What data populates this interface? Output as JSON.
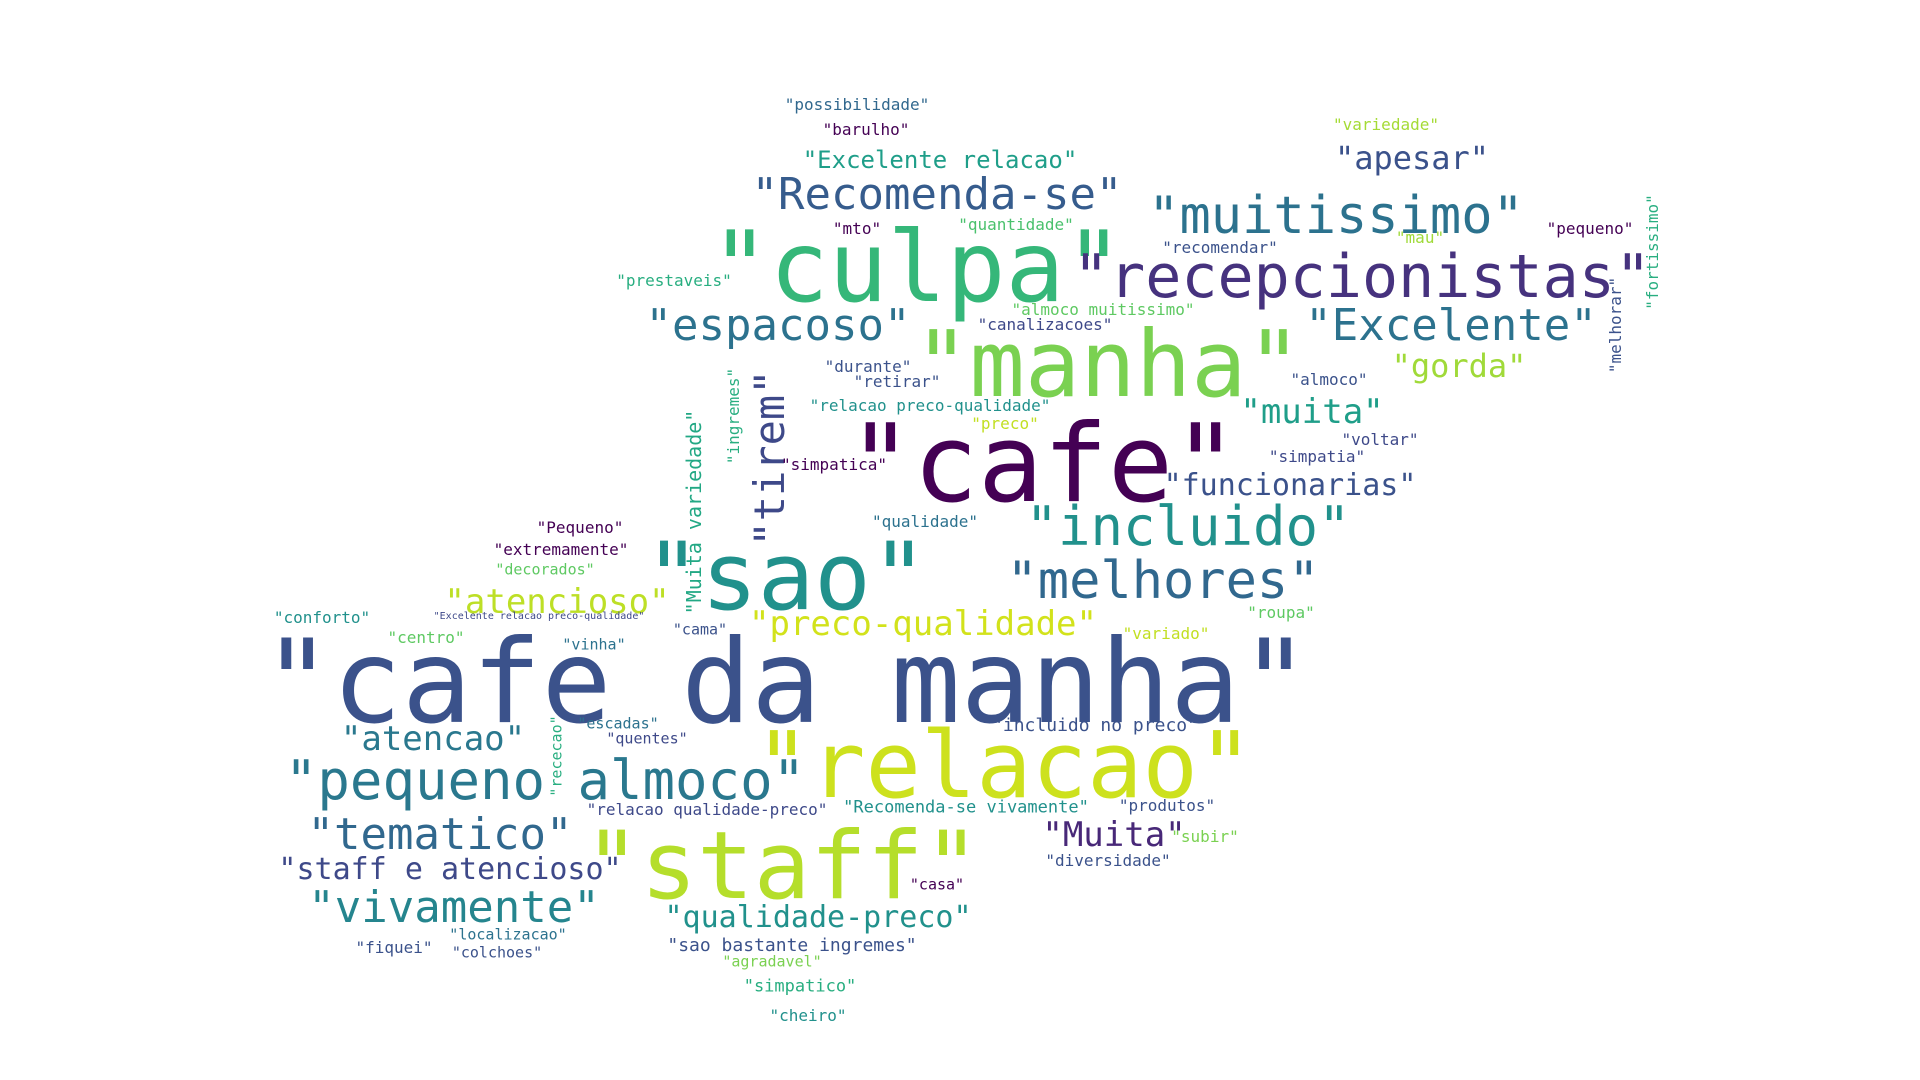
{
  "words": [
    {
      "text": "\"cafe da manha\"",
      "color": "#3b528b"
    },
    {
      "text": "\"culpa\"",
      "color": "#35b779"
    },
    {
      "text": "\"cafe\"",
      "color": "#440154"
    },
    {
      "text": "\"manha\"",
      "color": "#7ad151"
    },
    {
      "text": "\"sao\"",
      "color": "#21918c"
    },
    {
      "text": "\"relacao\"",
      "color": "#cde11d"
    },
    {
      "text": "\"staff\"",
      "color": "#b5de2b"
    },
    {
      "text": "\"recepcionistas\"",
      "color": "#46327e"
    },
    {
      "text": "\"muitissimo\"",
      "color": "#2c728e"
    },
    {
      "text": "\"Recomenda-se\"",
      "color": "#365c8d"
    },
    {
      "text": "\"espacoso\"",
      "color": "#2c728e"
    },
    {
      "text": "\"Excelente\"",
      "color": "#2c728e"
    },
    {
      "text": "\"incluido\"",
      "color": "#21918c"
    },
    {
      "text": "\"melhores\"",
      "color": "#31688e"
    },
    {
      "text": "\"pequeno almoco\"",
      "color": "#2a788e"
    },
    {
      "text": "\"tematico\"",
      "color": "#31688e"
    },
    {
      "text": "\"vivamente\"",
      "color": "#25858e"
    },
    {
      "text": "\"tirem\"",
      "color": "#3e4989"
    },
    {
      "text": "\"atencao\"",
      "color": "#2a788e"
    },
    {
      "text": "\"atencioso\"",
      "color": "#bddf26"
    },
    {
      "text": "\"preco-qualidade\"",
      "color": "#d2e21b"
    },
    {
      "text": "\"staff e atencioso\"",
      "color": "#3e4989"
    },
    {
      "text": "\"qualidade-preco\"",
      "color": "#21918c"
    },
    {
      "text": "\"funcionarias\"",
      "color": "#3b528b"
    },
    {
      "text": "\"muita\"",
      "color": "#1f9e89"
    },
    {
      "text": "\"gorda\"",
      "color": "#a0da39"
    },
    {
      "text": "\"apesar\"",
      "color": "#3b528b"
    },
    {
      "text": "\"Muita\"",
      "color": "#482878"
    },
    {
      "text": "\"Excelente relacao\"",
      "color": "#1f9e89"
    },
    {
      "text": "\"Muita variedade\"",
      "color": "#22a884"
    },
    {
      "text": "\"variedade\"",
      "color": "#a5db36"
    },
    {
      "text": "\"possibilidade\"",
      "color": "#31688e"
    },
    {
      "text": "\"barulho\"",
      "color": "#440154"
    },
    {
      "text": "\"mto\"",
      "color": "#440154"
    },
    {
      "text": "\"quantidade\"",
      "color": "#4ac16d"
    },
    {
      "text": "\"recomendar\"",
      "color": "#3b528b"
    },
    {
      "text": "\"mau\"",
      "color": "#a0da39"
    },
    {
      "text": "\"pequeno\"",
      "color": "#440154"
    },
    {
      "text": "\"fortissimo\"",
      "color": "#28ae80"
    },
    {
      "text": "\"melhorar\"",
      "color": "#3b528b"
    },
    {
      "text": "\"prestaveis\"",
      "color": "#28ae80"
    },
    {
      "text": "\"almoco muitissimo\"",
      "color": "#5ec962"
    },
    {
      "text": "\"canalizacoes\"",
      "color": "#3e4989"
    },
    {
      "text": "\"durante\"",
      "color": "#3b528b"
    },
    {
      "text": "\"retirar\"",
      "color": "#3b528b"
    },
    {
      "text": "\"almoco\"",
      "color": "#3b528b"
    },
    {
      "text": "\"relacao preco-qualidade\"",
      "color": "#21918c"
    },
    {
      "text": "\"preco\"",
      "color": "#c2df23"
    },
    {
      "text": "\"ingremes\"",
      "color": "#28ae80"
    },
    {
      "text": "\"voltar\"",
      "color": "#3e4989"
    },
    {
      "text": "\"simpatia\"",
      "color": "#3e4989"
    },
    {
      "text": "\"simpatica\"",
      "color": "#440154"
    },
    {
      "text": "\"qualidade\"",
      "color": "#2c728e"
    },
    {
      "text": "\"Pequeno\"",
      "color": "#440154"
    },
    {
      "text": "\"extremamente\"",
      "color": "#440154"
    },
    {
      "text": "\"decorados\"",
      "color": "#5ec962"
    },
    {
      "text": "\"conforto\"",
      "color": "#21918c"
    },
    {
      "text": "\"Excelente relacao preco-qualidade\"",
      "color": "#3e4989"
    },
    {
      "text": "\"centro\"",
      "color": "#5ec962"
    },
    {
      "text": "\"vinha\"",
      "color": "#2c728e"
    },
    {
      "text": "\"cama\"",
      "color": "#3b528b"
    },
    {
      "text": "\"roupa\"",
      "color": "#5ec962"
    },
    {
      "text": "\"variado\"",
      "color": "#c2df23"
    },
    {
      "text": "\"incluido no preco\"",
      "color": "#3b528b"
    },
    {
      "text": "\"escadas\"",
      "color": "#2c728e"
    },
    {
      "text": "\"quentes\"",
      "color": "#3e4989"
    },
    {
      "text": "\"rececao\"",
      "color": "#28ae80"
    },
    {
      "text": "\"relacao qualidade-preco\"",
      "color": "#3e4989"
    },
    {
      "text": "\"Recomenda-se vivamente\"",
      "color": "#21918c"
    },
    {
      "text": "\"produtos\"",
      "color": "#3b528b"
    },
    {
      "text": "\"subir\"",
      "color": "#7ad151"
    },
    {
      "text": "\"diversidade\"",
      "color": "#3b528b"
    },
    {
      "text": "\"casa\"",
      "color": "#440154"
    },
    {
      "text": "\"localizacao\"",
      "color": "#2c728e"
    },
    {
      "text": "\"fiquei\"",
      "color": "#3b528b"
    },
    {
      "text": "\"colchoes\"",
      "color": "#3b528b"
    },
    {
      "text": "\"sao bastante ingremes\"",
      "color": "#3b528b"
    },
    {
      "text": "\"agradavel\"",
      "color": "#7ad151"
    },
    {
      "text": "\"simpatico\"",
      "color": "#28ae80"
    },
    {
      "text": "\"cheiro\"",
      "color": "#21918c"
    }
  ]
}
